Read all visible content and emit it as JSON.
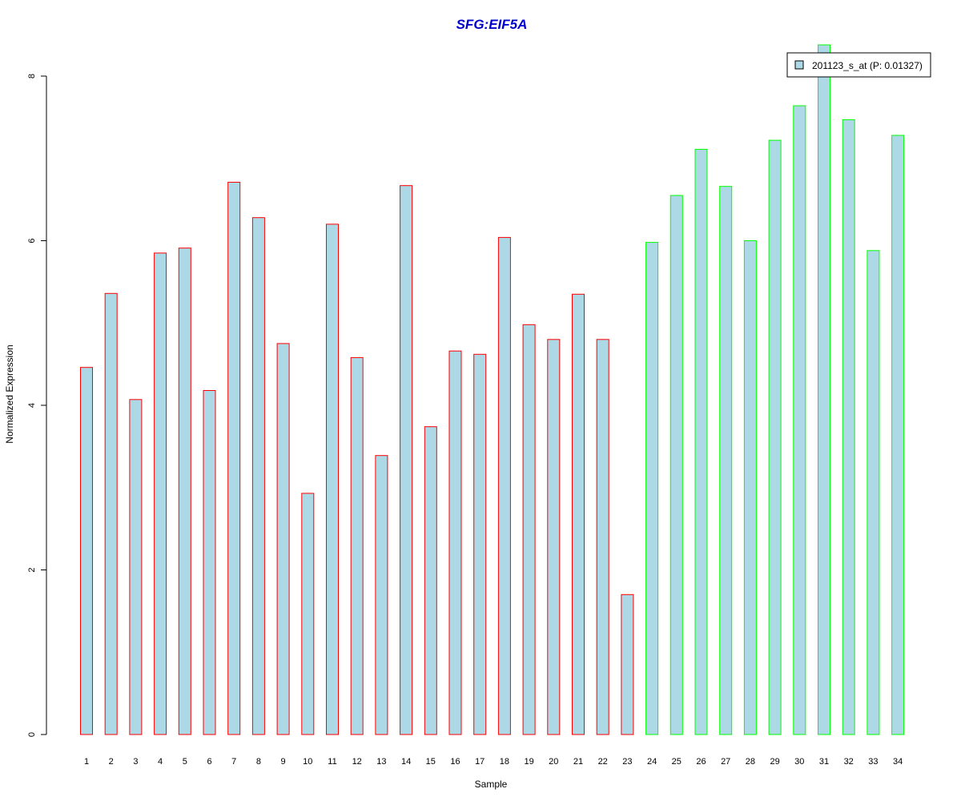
{
  "chart_data": {
    "type": "bar",
    "title": "SFG:EIF5A",
    "xlabel": "Sample",
    "ylabel": "Normalized Expression",
    "ylim": [
      0,
      8
    ],
    "yticks": [
      "0",
      "2",
      "4",
      "6",
      "8"
    ],
    "categories": [
      "1",
      "2",
      "3",
      "4",
      "5",
      "6",
      "7",
      "8",
      "9",
      "10",
      "11",
      "12",
      "13",
      "14",
      "15",
      "16",
      "17",
      "18",
      "19",
      "20",
      "21",
      "22",
      "23",
      "24",
      "25",
      "26",
      "27",
      "28",
      "29",
      "30",
      "31",
      "32",
      "33",
      "34"
    ],
    "values": [
      4.46,
      5.36,
      4.07,
      5.85,
      5.91,
      4.18,
      6.71,
      6.28,
      4.75,
      2.93,
      6.2,
      4.58,
      3.39,
      6.67,
      3.74,
      4.66,
      4.62,
      6.04,
      4.98,
      4.8,
      5.35,
      4.8,
      1.7,
      5.98,
      6.55,
      7.11,
      6.66,
      6.0,
      7.22,
      7.64,
      8.38,
      7.47,
      5.88,
      7.28
    ],
    "group_colors": [
      "#ff0000",
      "#ff0000",
      "#ff0000",
      "#ff0000",
      "#ff0000",
      "#ff0000",
      "#ff0000",
      "#ff0000",
      "#ff0000",
      "#ff0000",
      "#ff0000",
      "#ff0000",
      "#ff0000",
      "#ff0000",
      "#ff0000",
      "#ff0000",
      "#ff0000",
      "#ff0000",
      "#ff0000",
      "#ff0000",
      "#ff0000",
      "#ff0000",
      "#ff0000",
      "#00ff00",
      "#00ff00",
      "#00ff00",
      "#00ff00",
      "#00ff00",
      "#00ff00",
      "#00ff00",
      "#00ff00",
      "#00ff00",
      "#00ff00",
      "#00ff00"
    ],
    "legend": {
      "placement": "top-right",
      "entries": [
        "201123_s_at (P: 0.01327)"
      ]
    },
    "fill_color": "#add8e6",
    "title_color": "#0000cd",
    "grid": false
  }
}
